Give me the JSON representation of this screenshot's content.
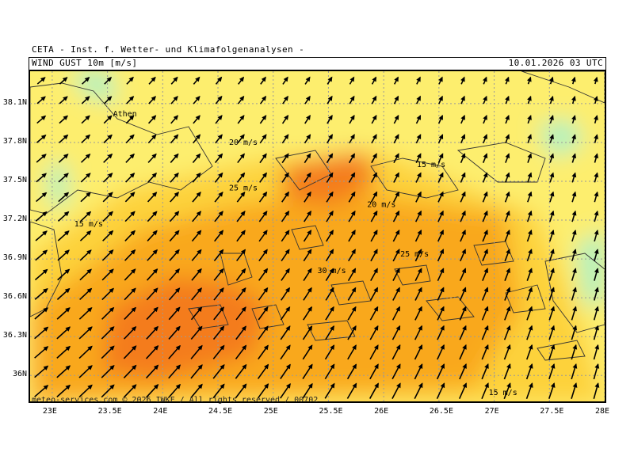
{
  "header": {
    "institute": "CETA - Inst. f. Wetter- und Klimafolgenanalysen -",
    "field": "WIND GUST 10m [m/s]",
    "datetime": "10.01.2026 03 UTC"
  },
  "axes": {
    "lat_labels": [
      "38.1N",
      "37.8N",
      "37.5N",
      "37.2N",
      "36.9N",
      "36.6N",
      "36.3N",
      "36N"
    ],
    "lon_labels": [
      "23E",
      "23.5E",
      "24E",
      "24.5E",
      "25E",
      "25.5E",
      "26E",
      "26.5E",
      "27E",
      "27.5E",
      "28E"
    ]
  },
  "contour_labels": [
    {
      "text": "20 m/s",
      "lon": 24.6,
      "lat": 37.78
    },
    {
      "text": "25 m/s",
      "lon": 24.6,
      "lat": 37.43
    },
    {
      "text": "15 m/s",
      "lon": 26.3,
      "lat": 37.61
    },
    {
      "text": "20 m/s",
      "lon": 25.85,
      "lat": 37.3
    },
    {
      "text": "15 m/s",
      "lon": 23.2,
      "lat": 37.15
    },
    {
      "text": "25 m/s",
      "lon": 26.15,
      "lat": 36.92
    },
    {
      "text": "30 m/s",
      "lon": 25.4,
      "lat": 36.79
    },
    {
      "text": "15 m/s",
      "lon": 26.95,
      "lat": 35.85
    }
  ],
  "place_labels": [
    {
      "text": "Athen",
      "lon": 23.55,
      "lat": 38.0
    }
  ],
  "legend_colors": {
    "lt15": "#a8f2c4",
    "15to20": "#fdee6e",
    "20to25": "#fdd23a",
    "25to30": "#f9a81a",
    "gt30": "#f47c1c"
  },
  "credit": "meteo-services.com © 2026 IWKF / All rights reserved / 00702",
  "wind_direction_note": "SW flow"
}
